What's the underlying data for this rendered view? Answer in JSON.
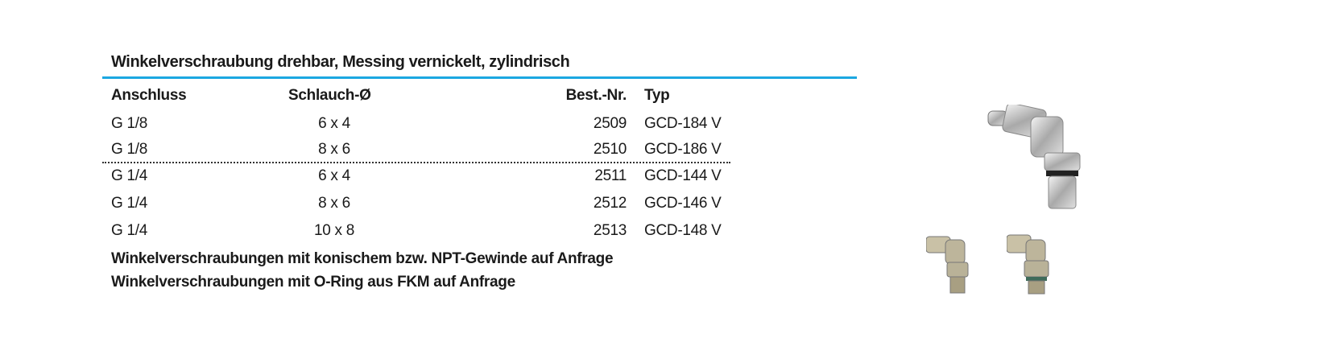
{
  "title": "Winkelverschraubung drehbar, Messing vernickelt, zylindrisch",
  "columns": [
    "Anschluss",
    "Schlauch-Ø",
    "Best.-Nr.",
    "Typ"
  ],
  "rows": [
    {
      "anschluss": "G 1/8",
      "schlauch": "6 x 4",
      "best_nr": "2509",
      "typ": "GCD-184 V"
    },
    {
      "anschluss": "G 1/8",
      "schlauch": "8 x 6",
      "best_nr": "2510",
      "typ": "GCD-186 V"
    },
    {
      "anschluss": "G 1/4",
      "schlauch": "6 x 4",
      "best_nr": "2511",
      "typ": "GCD-144 V"
    },
    {
      "anschluss": "G 1/4",
      "schlauch": "8 x 6",
      "best_nr": "2512",
      "typ": "GCD-146 V"
    },
    {
      "anschluss": "G 1/4",
      "schlauch": "10 x 8",
      "best_nr": "2513",
      "typ": "GCD-148 V"
    }
  ],
  "notes": [
    "Winkelverschraubungen mit konischem bzw. NPT-Gewinde auf Anfrage",
    "Winkelverschraubungen mit O-Ring aus FKM auf Anfrage"
  ],
  "colors": {
    "accent": "#1ba7e1"
  }
}
